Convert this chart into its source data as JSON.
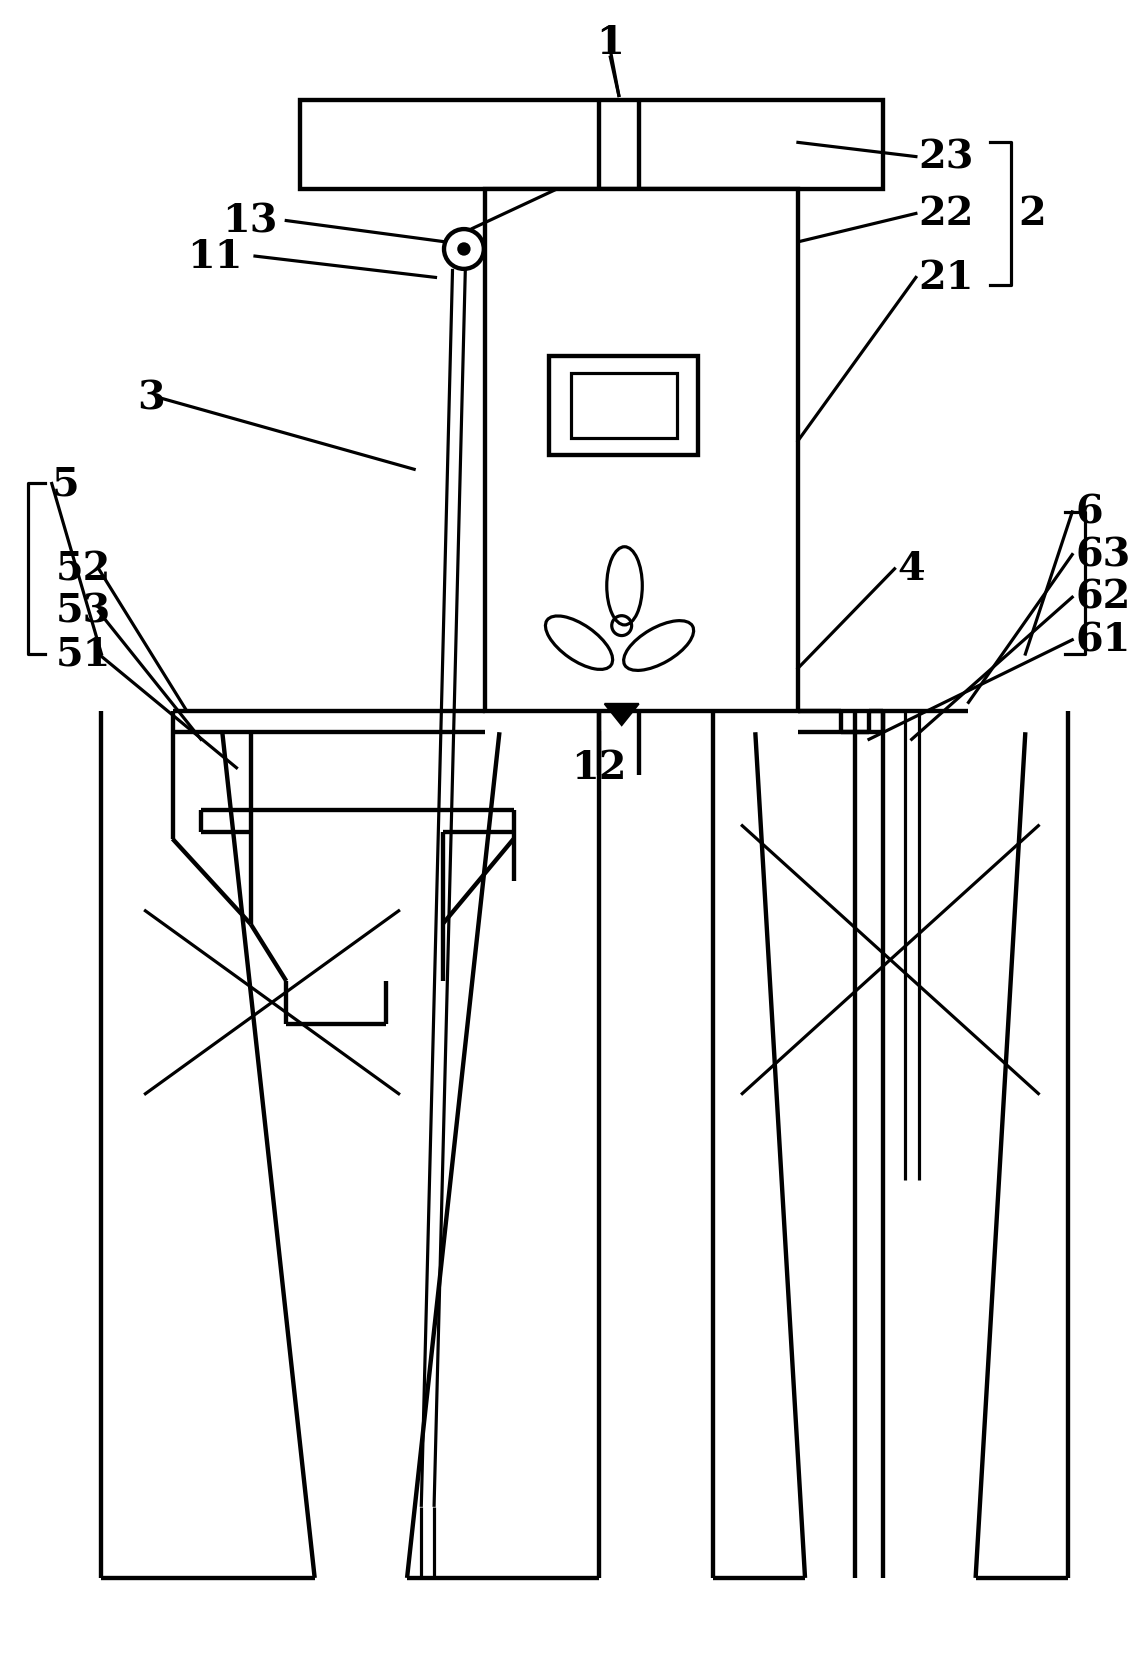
{
  "bg_color": "#ffffff",
  "line_color": "#000000",
  "lw": 2.2,
  "lw_thin": 1.6,
  "fig_width": 8.0,
  "fig_height": 11.57
}
